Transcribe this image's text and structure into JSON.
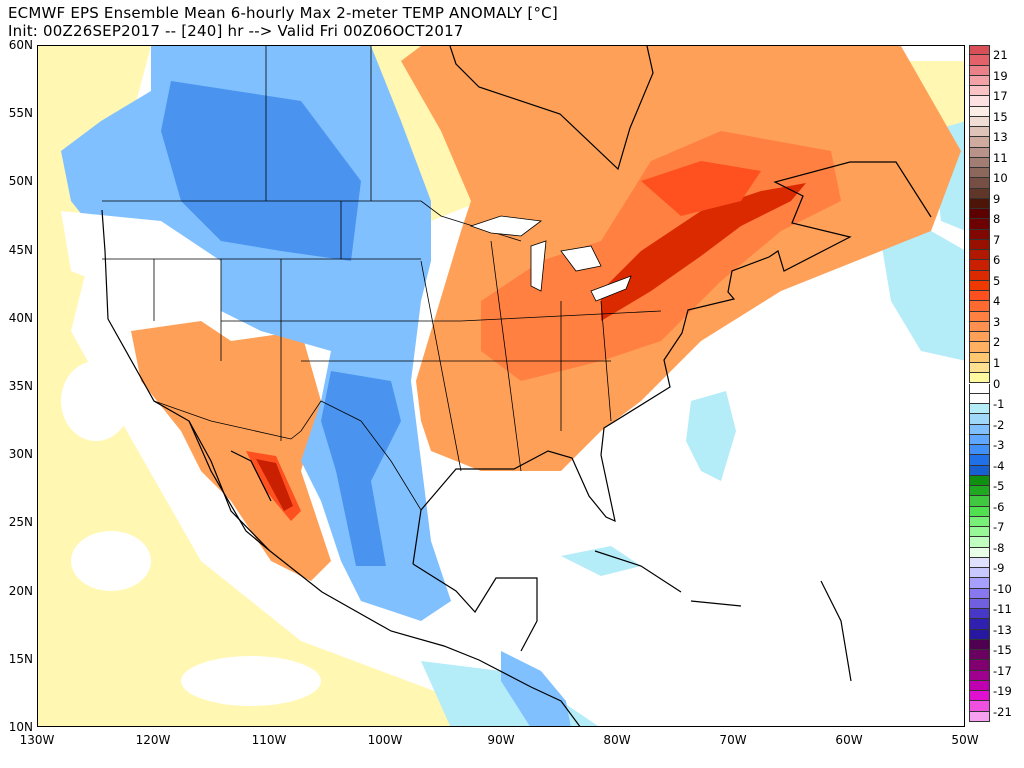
{
  "header": {
    "title": "ECMWF EPS Ensemble Mean 6-hourly Max 2-meter TEMP ANOMALY [°C]",
    "subtitle": "Init: 00Z26SEP2017 -- [240] hr --> Valid Fri 00Z06OCT2017"
  },
  "map": {
    "lon_range": [
      -130,
      -50
    ],
    "lat_range": [
      10,
      60
    ],
    "lat_labels": [
      {
        "value": 60,
        "label": "60N"
      },
      {
        "value": 55,
        "label": "55N"
      },
      {
        "value": 50,
        "label": "50N"
      },
      {
        "value": 45,
        "label": "45N"
      },
      {
        "value": 40,
        "label": "40N"
      },
      {
        "value": 35,
        "label": "35N"
      },
      {
        "value": 30,
        "label": "30N"
      },
      {
        "value": 25,
        "label": "25N"
      },
      {
        "value": 20,
        "label": "20N"
      },
      {
        "value": 15,
        "label": "15N"
      },
      {
        "value": 10,
        "label": "10N"
      }
    ],
    "lon_labels": [
      {
        "value": -130,
        "label": "130W"
      },
      {
        "value": -120,
        "label": "120W"
      },
      {
        "value": -110,
        "label": "110W"
      },
      {
        "value": -100,
        "label": "100W"
      },
      {
        "value": -90,
        "label": "90W"
      },
      {
        "value": -80,
        "label": "80W"
      },
      {
        "value": -70,
        "label": "70W"
      },
      {
        "value": -60,
        "label": "60W"
      },
      {
        "value": -50,
        "label": "50W"
      }
    ]
  },
  "colorbar": {
    "labels": [
      "21",
      "19",
      "17",
      "15",
      "13",
      "11",
      "10",
      "9",
      "8",
      "7",
      "6",
      "5",
      "4",
      "3",
      "2",
      "1",
      "0",
      "-1",
      "-2",
      "-3",
      "-4",
      "-5",
      "-6",
      "-7",
      "-8",
      "-9",
      "-10",
      "-11",
      "-13",
      "-15",
      "-17",
      "-19",
      "-21"
    ],
    "colors": [
      "#d94f57",
      "#e36169",
      "#ea8088",
      "#f2a1a7",
      "#f9c3c6",
      "#fde0e2",
      "#faeee6",
      "#f0ddd3",
      "#e0c3b8",
      "#cfaa9e",
      "#b9938a",
      "#a27d73",
      "#8c675c",
      "#764f44",
      "#5f3628",
      "#4d1408",
      "#5c0000",
      "#6d0000",
      "#800800",
      "#981000",
      "#b01800",
      "#c82000",
      "#dc2a00",
      "#ee3a00",
      "#ff5020",
      "#ff6a30",
      "#ff8040",
      "#ff9050",
      "#ffa058",
      "#ffb060",
      "#ffc870",
      "#ffe090",
      "#fffaa0",
      "#ffffff",
      "#ffffff",
      "#b4ecf8",
      "#a0d8fa",
      "#80c0ff",
      "#60a8ff",
      "#4090f8",
      "#2070e8",
      "#1860d0",
      "#109010",
      "#20a820",
      "#40c840",
      "#50e050",
      "#78f078",
      "#98f898",
      "#c0ffc0",
      "#e8ffe8",
      "#e0e0ff",
      "#c8c8ff",
      "#a8a0ff",
      "#8878f0",
      "#7060e0",
      "#4838c8",
      "#3020b0",
      "#2818a0",
      "#500050",
      "#6a0060",
      "#800070",
      "#a00090",
      "#c000b0",
      "#e010d0",
      "#f050e0",
      "#f8a0f0"
    ]
  }
}
